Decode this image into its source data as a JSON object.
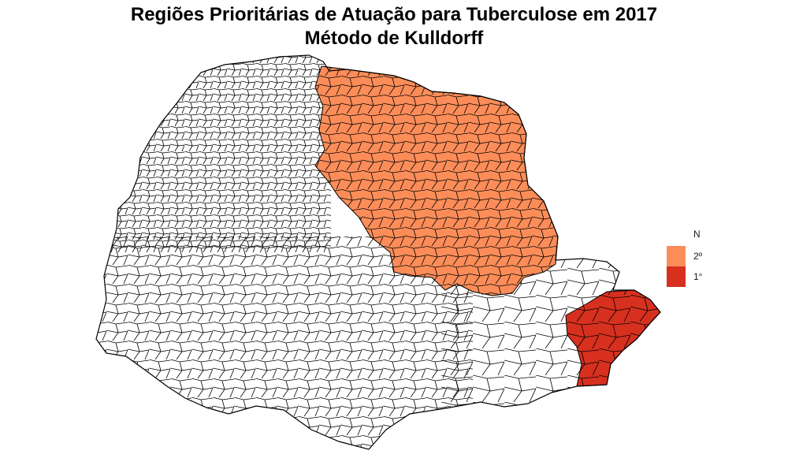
{
  "title": {
    "line1": "Regiões Prioritárias de Atuação para Tuberculose em 2017",
    "line2": "Método de Kulldorff"
  },
  "legend": {
    "title": "N",
    "items": [
      {
        "label": "2º",
        "color": "#fc8d59"
      },
      {
        "label": "1°",
        "color": "#d7301f"
      }
    ]
  },
  "map": {
    "region": "Paraná",
    "base_fill": "#ffffff",
    "border_color": "#000000"
  }
}
